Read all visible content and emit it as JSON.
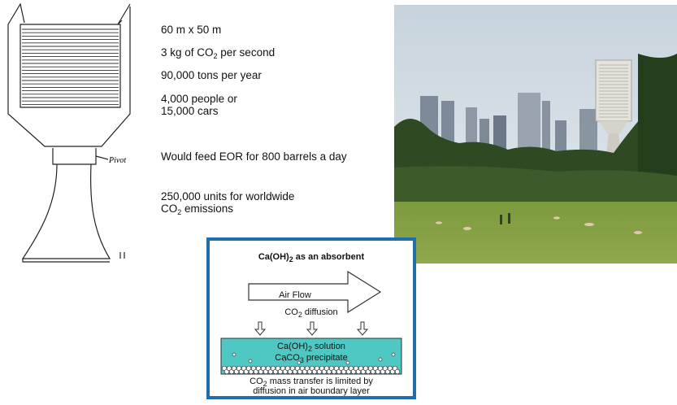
{
  "sketch": {
    "pivot_label": "Pivot"
  },
  "facts": {
    "dimensions": "60 m x 50 m",
    "rate": {
      "pre": "3 kg of CO",
      "sub": "2",
      "post": " per second"
    },
    "per_year": "90,000 tons per year",
    "equivalent_line1": "4,000 people or",
    "equivalent_line2": "15,000 cars",
    "eor": "Would feed EOR for 800 barrels a day",
    "units_line1": "250,000 units for worldwide",
    "units_line2": {
      "pre": "CO",
      "sub": "2",
      "post": " emissions"
    }
  },
  "diagram": {
    "title": {
      "pre": "Ca(OH)",
      "sub": "2",
      "post": " as an absorbent"
    },
    "arrow_label": "Air Flow",
    "diffusion": {
      "pre": "CO",
      "sub": "2",
      "post": " diffusion"
    },
    "solution": {
      "pre": "Ca(OH)",
      "sub": "2",
      "post": " solution"
    },
    "precipitate": {
      "pre": "CaCO",
      "sub": "3",
      "post": " precipitate"
    },
    "caption_line1": {
      "pre": "CO",
      "sub": "2",
      "post": " mass transfer is limited by"
    },
    "caption_line2": "diffusion in air boundary layer",
    "colors": {
      "border": "#1f6fae",
      "solution": "#4fc7c2"
    }
  },
  "photo": {
    "description_icon": "park-skyline-photo"
  }
}
